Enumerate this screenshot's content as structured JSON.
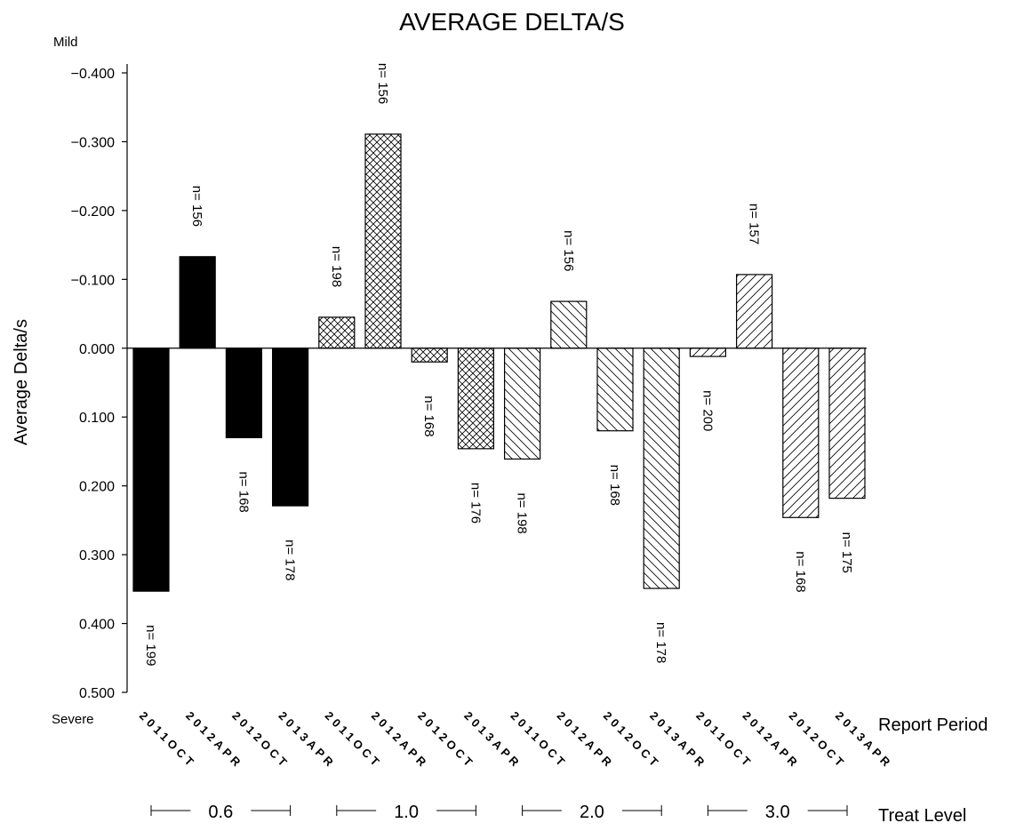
{
  "chart_data": {
    "type": "bar",
    "title": "AVERAGE DELTA/S",
    "ylabel": "Average Delta/s",
    "y_top_note": "Mild",
    "y_bottom_note": "Severe",
    "x_label_periods": "Report Period",
    "x_label_groups": "Treat Level",
    "ylim": [
      -0.4,
      0.5
    ],
    "y_reversed": true,
    "yticks": [
      -0.4,
      -0.3,
      -0.2,
      -0.1,
      0.0,
      0.1,
      0.2,
      0.3,
      0.4,
      0.5
    ],
    "ytick_labels": [
      "−0.400",
      "−0.300",
      "−0.200",
      "−0.100",
      "0.000",
      "0.100",
      "0.200",
      "0.300",
      "0.400",
      "0.500"
    ],
    "groups": [
      {
        "name": "0.6",
        "pattern": "solid"
      },
      {
        "name": "1.0",
        "pattern": "crosshatch"
      },
      {
        "name": "2.0",
        "pattern": "backslash"
      },
      {
        "name": "3.0",
        "pattern": "slash"
      }
    ],
    "bars": [
      {
        "group": 0,
        "period": "2011OCT",
        "value": 0.353,
        "n": "n= 199"
      },
      {
        "group": 0,
        "period": "2012APR",
        "value": -0.133,
        "n": "n= 156"
      },
      {
        "group": 0,
        "period": "2012OCT",
        "value": 0.13,
        "n": "n= 168"
      },
      {
        "group": 0,
        "period": "2013APR",
        "value": 0.229,
        "n": "n= 178"
      },
      {
        "group": 1,
        "period": "2011OCT",
        "value": -0.045,
        "n": "n= 198"
      },
      {
        "group": 1,
        "period": "2012APR",
        "value": -0.311,
        "n": "n= 156"
      },
      {
        "group": 1,
        "period": "2012OCT",
        "value": 0.02,
        "n": "n= 168"
      },
      {
        "group": 1,
        "period": "2013APR",
        "value": 0.146,
        "n": "n= 176"
      },
      {
        "group": 2,
        "period": "2011OCT",
        "value": 0.161,
        "n": "n= 198"
      },
      {
        "group": 2,
        "period": "2012APR",
        "value": -0.068,
        "n": "n= 156"
      },
      {
        "group": 2,
        "period": "2012OCT",
        "value": 0.12,
        "n": "n= 168"
      },
      {
        "group": 2,
        "period": "2013APR",
        "value": 0.349,
        "n": "n= 178"
      },
      {
        "group": 3,
        "period": "2011OCT",
        "value": 0.012,
        "n": "n= 200"
      },
      {
        "group": 3,
        "period": "2012APR",
        "value": -0.107,
        "n": "n= 157"
      },
      {
        "group": 3,
        "period": "2012OCT",
        "value": 0.246,
        "n": "n= 168"
      },
      {
        "group": 3,
        "period": "2013APR",
        "value": 0.218,
        "n": "n= 175"
      }
    ]
  }
}
